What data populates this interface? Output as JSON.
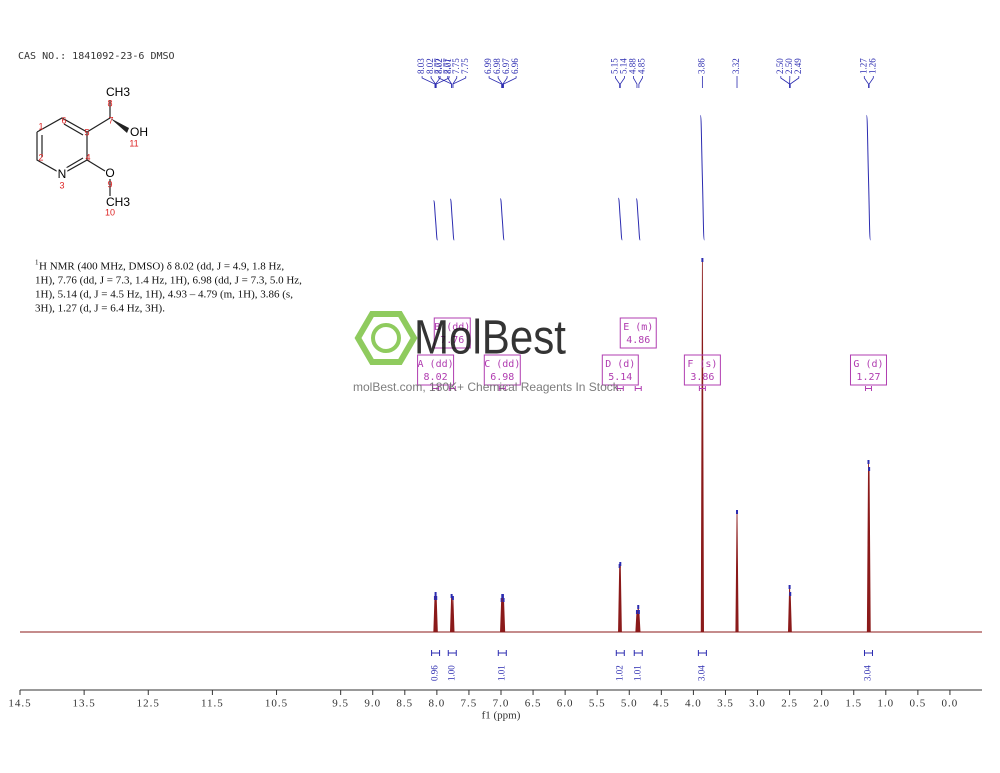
{
  "header": "CAS NO.: 1841092-23-6 DMSO",
  "structure": {
    "labels": [
      "CH3",
      "8",
      "7",
      "OH",
      "11",
      "1",
      "6",
      "5",
      "2",
      "4",
      "N",
      "3",
      "O",
      "9",
      "CH3",
      "10"
    ]
  },
  "nmr_text": {
    "sup": "1",
    "lines": [
      "H NMR (400 MHz, DMSO) δ 8.02 (dd, J = 4.9, 1.8 Hz,",
      "1H), 7.76 (dd, J = 7.3, 1.4 Hz, 1H), 6.98 (dd, J = 7.3, 5.0 Hz,",
      "1H), 5.14 (d, J = 4.5 Hz, 1H), 4.93 – 4.79 (m, 1H), 3.86 (s,",
      "3H), 1.27 (d, J = 6.4 Hz, 3H)."
    ]
  },
  "watermark": {
    "logo": "MolBest",
    "text": "molBest.com, 180K+ Chemical Reagents In Stock."
  },
  "chart_data": {
    "type": "nmr",
    "x_label": "f1 (ppm)",
    "xlim": [
      14.5,
      -0.5
    ],
    "xticks": [
      14.5,
      13.5,
      12.5,
      11.5,
      10.5,
      9.5,
      {
        "value": 9,
        "label": "9.0"
      },
      8.5,
      {
        "value": 8,
        "label": "8.0"
      },
      7.5,
      {
        "value": 7,
        "label": "7.0"
      },
      6.5,
      {
        "value": 6,
        "label": "6.0"
      },
      5.5,
      {
        "value": 5,
        "label": "5.0"
      },
      4.5,
      {
        "value": 4,
        "label": "4.0"
      },
      3.5,
      {
        "value": 3,
        "label": "3.0"
      },
      2.5,
      {
        "value": 2,
        "label": "2.0"
      },
      1.5,
      {
        "value": 1,
        "label": "1.0"
      },
      0.5,
      {
        "value": 0,
        "label": "0.0"
      }
    ],
    "ylim": [
      0,
      380
    ],
    "color": "#8b1a1a",
    "label_color": "#2b2bb0",
    "box_color": "#b03cb0",
    "peaks": {
      "x": [
        8.03,
        8.02,
        8.01,
        7.77,
        7.75,
        6.99,
        6.98,
        6.97,
        6.96,
        5.15,
        5.14,
        4.88,
        4.86,
        4.85,
        3.86,
        3.32,
        2.5,
        2.49,
        1.27,
        1.26
      ],
      "values": [
        36,
        40,
        36,
        38,
        36,
        34,
        38,
        38,
        34,
        68,
        70,
        22,
        27,
        22,
        374,
        122,
        47,
        40,
        172,
        165
      ]
    },
    "peak_labels": {
      "values": [
        8.03,
        8.02,
        8.02,
        8.01,
        7.77,
        7.77,
        7.75,
        7.75,
        6.99,
        6.98,
        6.97,
        6.96,
        5.15,
        5.14,
        4.88,
        4.85,
        3.86,
        3.32,
        2.5,
        2.5,
        2.49,
        1.27,
        1.26
      ],
      "value_labels": [
        "8.03",
        "8.02",
        "8.02",
        "8.01",
        "7.77",
        "7.77",
        "7.75",
        "7.75",
        "6.99",
        "6.98",
        "6.97",
        "6.96",
        "5.15",
        "5.14",
        "4.88",
        "4.85",
        "3.86",
        "3.32",
        "2.50",
        "2.50",
        "2.49",
        "1.27",
        "1.26"
      ]
    },
    "multiplets": {
      "names": [
        "A (dd)",
        "B (dd)",
        "C (dd)",
        "D (d)",
        "E (m)",
        "F (s)",
        "G (d)"
      ],
      "values": [
        8.02,
        7.76,
        6.98,
        5.14,
        4.86,
        3.86,
        1.27
      ],
      "integrals": [
        0.96,
        1,
        1.01,
        1.02,
        1.01,
        3.04,
        3.04
      ],
      "integral_labels": [
        "0.96",
        "1.00",
        "1.01",
        "1.02",
        "1.01",
        "3.04",
        "3.04"
      ]
    }
  }
}
